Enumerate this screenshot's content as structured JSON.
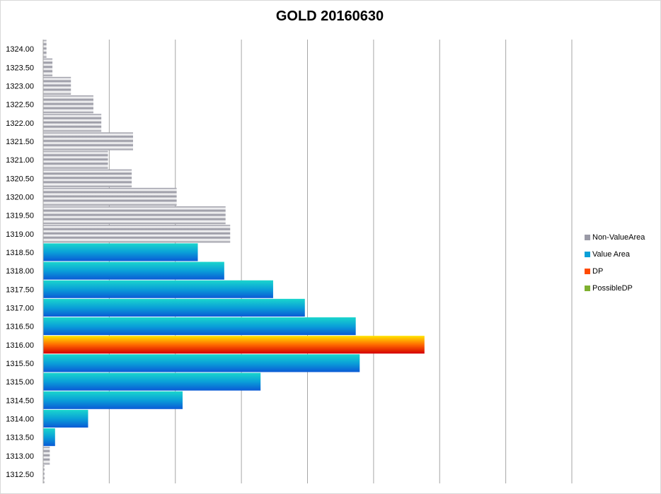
{
  "chart_data": {
    "type": "bar",
    "orientation": "horizontal",
    "title": "GOLD 20160630",
    "xlabel": "",
    "ylabel": "",
    "xlim": [
      0,
      8
    ],
    "xgrid": true,
    "categories": [
      "1324.00",
      "1323.50",
      "1323.00",
      "1322.50",
      "1322.00",
      "1321.50",
      "1321.00",
      "1320.50",
      "1320.00",
      "1319.50",
      "1319.00",
      "1318.50",
      "1318.00",
      "1317.50",
      "1317.00",
      "1316.50",
      "1316.00",
      "1315.50",
      "1315.00",
      "1314.50",
      "1314.00",
      "1313.50",
      "1313.00",
      "1312.50"
    ],
    "values": [
      0.05,
      0.14,
      0.42,
      0.76,
      0.88,
      1.36,
      0.98,
      1.34,
      2.02,
      2.76,
      2.83,
      2.34,
      2.74,
      3.48,
      3.96,
      4.73,
      5.77,
      4.79,
      3.29,
      2.11,
      0.68,
      0.18,
      0.1,
      0.02
    ],
    "series_of_bar": [
      "Non-ValueArea",
      "Non-ValueArea",
      "Non-ValueArea",
      "Non-ValueArea",
      "Non-ValueArea",
      "Non-ValueArea",
      "Non-ValueArea",
      "Non-ValueArea",
      "Non-ValueArea",
      "Non-ValueArea",
      "Non-ValueArea",
      "Value Area",
      "Value Area",
      "Value Area",
      "Value Area",
      "Value Area",
      "DP",
      "Value Area",
      "Value Area",
      "Value Area",
      "Value Area",
      "Value Area",
      "Non-ValueArea",
      "Non-ValueArea"
    ],
    "series": [
      {
        "name": "Non-ValueArea",
        "color": "#9a9aa6"
      },
      {
        "name": "Value Area",
        "color": "#0aa0d8"
      },
      {
        "name": "DP",
        "color": "#ff4a00"
      },
      {
        "name": "PossibleDP",
        "color": "#7fb030"
      }
    ],
    "legend_position": "right"
  }
}
